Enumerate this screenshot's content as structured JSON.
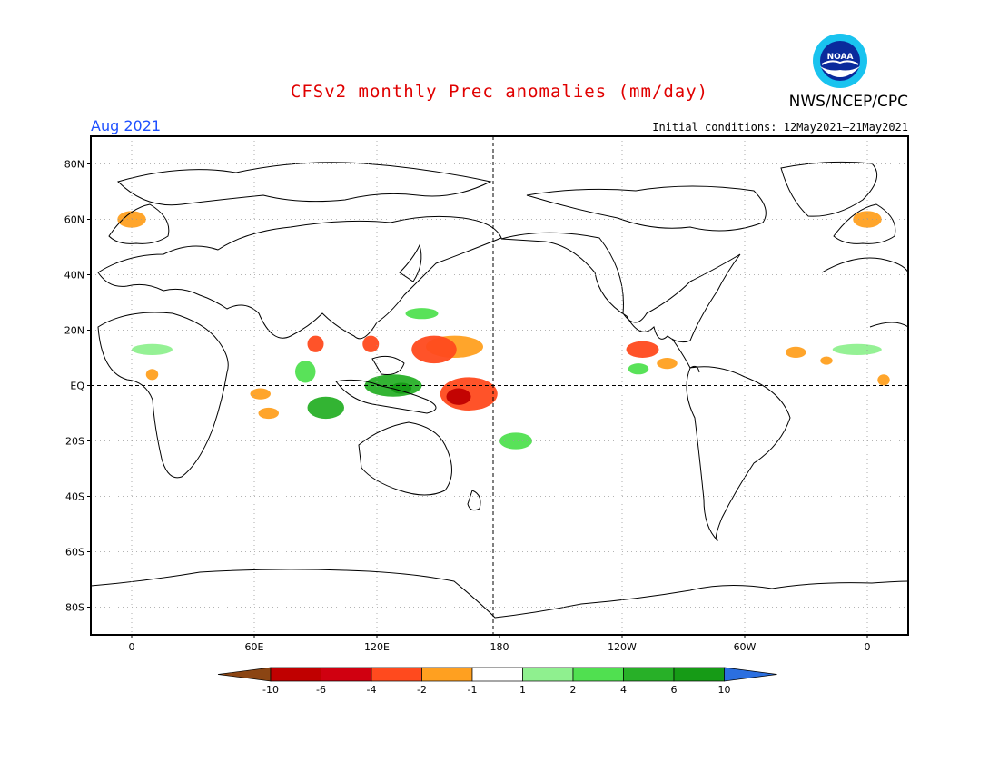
{
  "header": {
    "title": "CFSv2 monthly Prec anomalies (mm/day)",
    "org": "NWS/NCEP/CPC",
    "month": "Aug 2021",
    "initial_conditions": "Initial conditions: 12May2021–21May2021",
    "logo_text": "NOAA"
  },
  "map": {
    "projection": "cylindrical-equidistant",
    "lon_range": [
      -20,
      380
    ],
    "lat_range": [
      -90,
      90
    ],
    "lat_ticks": [
      {
        "lat": 80,
        "label": "80N"
      },
      {
        "lat": 60,
        "label": "60N"
      },
      {
        "lat": 40,
        "label": "40N"
      },
      {
        "lat": 20,
        "label": "20N"
      },
      {
        "lat": 0,
        "label": "EQ"
      },
      {
        "lat": -20,
        "label": "20S"
      },
      {
        "lat": -40,
        "label": "40S"
      },
      {
        "lat": -60,
        "label": "60S"
      },
      {
        "lat": -80,
        "label": "80S"
      }
    ],
    "lon_ticks": [
      {
        "lon": 0,
        "label": "0"
      },
      {
        "lon": 60,
        "label": "60E"
      },
      {
        "lon": 120,
        "label": "120E"
      },
      {
        "lon": 180,
        "label": "180"
      },
      {
        "lon": 240,
        "label": "120W"
      },
      {
        "lon": 300,
        "label": "60W"
      },
      {
        "lon": 360,
        "label": "0"
      }
    ],
    "grid": "dotted",
    "reference_lines": [
      "equator",
      "dateline"
    ]
  },
  "colorbar": {
    "labels": [
      "-10",
      "-6",
      "-4",
      "-2",
      "-1",
      "1",
      "2",
      "4",
      "6",
      "10"
    ],
    "colors": [
      "#8b4513",
      "#c00000",
      "#d00010",
      "#ff4a1e",
      "#ffa020",
      "#ffffff",
      "#8ff08f",
      "#50e050",
      "#28b028",
      "#169b16",
      "#2b6fe0"
    ]
  },
  "anomalies": [
    {
      "name": "central-pacific-dry",
      "lon": 165,
      "lat": -3,
      "rlon": 14,
      "rlat": 6,
      "level": -4
    },
    {
      "name": "equatorial-dry-core",
      "lon": 160,
      "lat": -4,
      "rlon": 6,
      "rlat": 3,
      "level": -6
    },
    {
      "name": "philippine-sea-dry",
      "lon": 148,
      "lat": 13,
      "rlon": 11,
      "rlat": 5,
      "level": -4
    },
    {
      "name": "philippine-sea-margin",
      "lon": 158,
      "lat": 14,
      "rlon": 14,
      "rlat": 4,
      "level": -2
    },
    {
      "name": "bay-of-bengal-dry",
      "lon": 90,
      "lat": 15,
      "rlon": 4,
      "rlat": 3,
      "level": -4
    },
    {
      "name": "south-china-sea-dry",
      "lon": 117,
      "lat": 15,
      "rlon": 4,
      "rlat": 3,
      "level": -4
    },
    {
      "name": "western-indian-ocean-dry",
      "lon": 63,
      "lat": -3,
      "rlon": 5,
      "rlat": 2,
      "level": -2
    },
    {
      "name": "western-indian-ocean-dry-2",
      "lon": 67,
      "lat": -10,
      "rlon": 5,
      "rlat": 2,
      "level": -2
    },
    {
      "name": "indonesia-wet",
      "lon": 95,
      "lat": -8,
      "rlon": 9,
      "rlat": 4,
      "level": 4
    },
    {
      "name": "maritime-continent-wet",
      "lon": 128,
      "lat": 0,
      "rlon": 14,
      "rlat": 4,
      "level": 4
    },
    {
      "name": "west-pacific-wet-core",
      "lon": 132,
      "lat": -1,
      "rlon": 5,
      "rlat": 2,
      "level": 6
    },
    {
      "name": "eastern-indian-ocean-wet",
      "lon": 85,
      "lat": 5,
      "rlon": 5,
      "rlat": 4,
      "level": 2
    },
    {
      "name": "northwest-pacific-wet",
      "lon": 142,
      "lat": 26,
      "rlon": 8,
      "rlat": 2,
      "level": 2
    },
    {
      "name": "south-pacific-wet",
      "lon": 188,
      "lat": -20,
      "rlon": 8,
      "rlat": 3,
      "level": 2
    },
    {
      "name": "eastern-pacific-dry",
      "lon": 250,
      "lat": 13,
      "rlon": 8,
      "rlat": 3,
      "level": -4
    },
    {
      "name": "eastern-pacific-dry-2",
      "lon": 262,
      "lat": 8,
      "rlon": 5,
      "rlat": 2,
      "level": -2
    },
    {
      "name": "eastern-pacific-wet",
      "lon": 248,
      "lat": 6,
      "rlon": 5,
      "rlat": 2,
      "level": 2
    },
    {
      "name": "atlantic-dry",
      "lon": 325,
      "lat": 12,
      "rlon": 5,
      "rlat": 2,
      "level": -2
    },
    {
      "name": "atlantic-dry-2",
      "lon": 340,
      "lat": 9,
      "rlon": 3,
      "rlat": 1.5,
      "level": -2
    },
    {
      "name": "atlantic-wet",
      "lon": 355,
      "lat": 13,
      "rlon": 12,
      "rlat": 2,
      "level": 1
    },
    {
      "name": "africa-wet",
      "lon": 10,
      "lat": 13,
      "rlon": 10,
      "rlat": 2,
      "level": 1
    },
    {
      "name": "scandinavia-dry",
      "lon": 0,
      "lat": 60,
      "rlon": 7,
      "rlat": 3,
      "level": -2
    },
    {
      "name": "scandinavia-dry-2",
      "lon": 360,
      "lat": 60,
      "rlon": 7,
      "rlat": 3,
      "level": -2
    },
    {
      "name": "gulf-of-guinea-dry",
      "lon": 10,
      "lat": 4,
      "rlon": 3,
      "rlat": 2,
      "level": -2
    },
    {
      "name": "gulf-of-guinea-dry-2",
      "lon": 368,
      "lat": 2,
      "rlon": 3,
      "rlat": 2,
      "level": -2
    }
  ]
}
